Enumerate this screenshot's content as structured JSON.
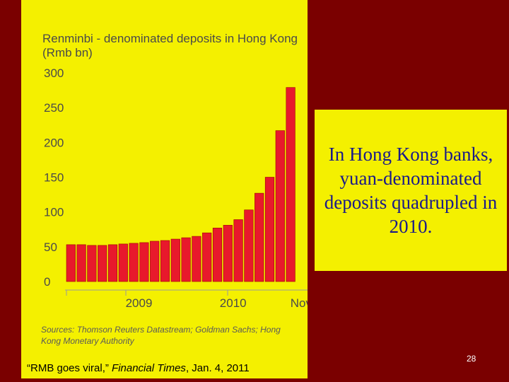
{
  "chart_data": {
    "type": "bar",
    "title": "Renminbi - denominated deposits in Hong Kong",
    "subtitle": "(Rmb bn)",
    "xlabel": "",
    "ylabel": "",
    "ylim": [
      0,
      300
    ],
    "yticks": [
      "300",
      "250",
      "200",
      "150",
      "100",
      "50",
      "0"
    ],
    "xticks": [
      {
        "label": "2009",
        "index": 6.5
      },
      {
        "label": "2010",
        "index": 15.5
      },
      {
        "label": "Nov",
        "index": 22
      }
    ],
    "grid": false,
    "bar_color": "#e8192c",
    "values": [
      53,
      53,
      52,
      52,
      53,
      54,
      55,
      56,
      58,
      59,
      61,
      63,
      65,
      70,
      77,
      81,
      89,
      103,
      127,
      150,
      217,
      279
    ]
  },
  "source": "Sources: Thomson Reuters Datastream; Goldman Sachs; Hong Kong Monetary Authority",
  "citation": {
    "quote": "“RMB goes viral,” ",
    "publication": "Financial Times",
    "date": ", Jan. 4, 2011"
  },
  "callout": "In Hong Kong banks, yuan-denominated deposits quadrupled in 2010.",
  "slide_number": "28"
}
